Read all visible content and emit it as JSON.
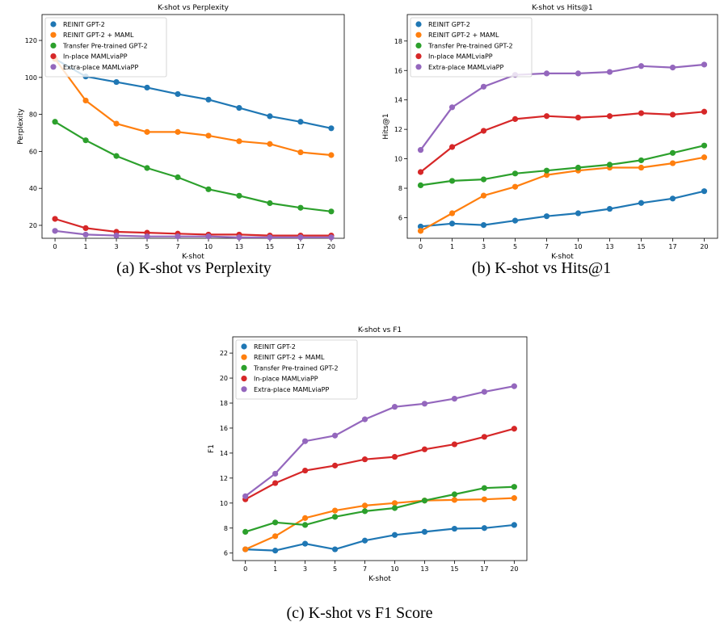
{
  "colors": {
    "series": [
      "#1f77b4",
      "#ff7f0e",
      "#2ca02c",
      "#d62728",
      "#9467bd"
    ]
  },
  "captions": [
    "(a) K-shot vs Perplexity",
    "(b) K-shot vs Hits@1",
    "(c) K-shot vs F1 Score"
  ],
  "chart_data": [
    {
      "type": "line",
      "title": "K-shot vs Perplexity",
      "xlabel": "K-shot",
      "ylabel": "Perplexity",
      "categories": [
        "0",
        "1",
        "3",
        "5",
        "7",
        "10",
        "13",
        "15",
        "17",
        "20"
      ],
      "ylim": [
        13,
        134
      ],
      "yticks": [
        20,
        40,
        60,
        80,
        100,
        120
      ],
      "legend_position": "top-left",
      "grid": false,
      "series": [
        {
          "name": "REINIT GPT-2",
          "values": [
            110,
            100.5,
            97.5,
            94.5,
            91,
            88,
            83.5,
            79,
            76,
            72.5
          ]
        },
        {
          "name": "REINIT GPT-2 + MAML",
          "values": [
            110,
            87.5,
            75,
            70.5,
            70.5,
            68.5,
            65.5,
            64,
            59.5,
            58
          ]
        },
        {
          "name": "Transfer Pre-trained GPT-2",
          "values": [
            76,
            66,
            57.5,
            51,
            46,
            39.5,
            36,
            32,
            29.5,
            27.5
          ]
        },
        {
          "name": "In-place MAMLviaPP",
          "values": [
            23.5,
            18.5,
            16.5,
            16,
            15.5,
            15,
            15,
            14.5,
            14.5,
            14.5
          ]
        },
        {
          "name": "Extra-place MAMLviaPP",
          "values": [
            17,
            15,
            14.5,
            14,
            14,
            14,
            13.5,
            13.5,
            13.5,
            13.5
          ]
        }
      ]
    },
    {
      "type": "line",
      "title": "K-shot vs Hits@1",
      "xlabel": "K-shot",
      "ylabel": "Hits@1",
      "categories": [
        "0",
        "1",
        "3",
        "5",
        "7",
        "10",
        "13",
        "15",
        "17",
        "20"
      ],
      "ylim": [
        4.6,
        19.8
      ],
      "yticks": [
        6,
        8,
        10,
        12,
        14,
        16,
        18
      ],
      "legend_position": "top-left",
      "grid": false,
      "series": [
        {
          "name": "REINIT GPT-2",
          "values": [
            5.4,
            5.6,
            5.5,
            5.8,
            6.1,
            6.3,
            6.6,
            7.0,
            7.3,
            7.8
          ]
        },
        {
          "name": "REINIT GPT-2 + MAML",
          "values": [
            5.1,
            6.3,
            7.5,
            8.1,
            8.9,
            9.2,
            9.4,
            9.4,
            9.7,
            10.1
          ]
        },
        {
          "name": "Transfer Pre-trained GPT-2",
          "values": [
            8.2,
            8.5,
            8.6,
            9.0,
            9.2,
            9.4,
            9.6,
            9.9,
            10.4,
            10.9
          ]
        },
        {
          "name": "In-place MAMLviaPP",
          "values": [
            9.1,
            10.8,
            11.9,
            12.7,
            12.9,
            12.8,
            12.9,
            13.1,
            13.0,
            13.2
          ]
        },
        {
          "name": "Extra-place MAMLviaPP",
          "values": [
            10.6,
            13.5,
            14.9,
            15.7,
            15.8,
            15.8,
            15.9,
            16.3,
            16.2,
            16.4
          ]
        }
      ]
    },
    {
      "type": "line",
      "title": "K-shot vs F1",
      "xlabel": "K-shot",
      "ylabel": "F1",
      "categories": [
        "0",
        "1",
        "3",
        "5",
        "7",
        "10",
        "13",
        "15",
        "17",
        "20"
      ],
      "ylim": [
        5.4,
        23.3
      ],
      "yticks": [
        6,
        8,
        10,
        12,
        14,
        16,
        18,
        20,
        22
      ],
      "legend_position": "top-left",
      "grid": false,
      "series": [
        {
          "name": "REINIT GPT-2",
          "values": [
            6.3,
            6.2,
            6.75,
            6.3,
            7.0,
            7.45,
            7.7,
            7.95,
            8.0,
            8.25
          ]
        },
        {
          "name": "REINIT GPT-2 + MAML",
          "values": [
            6.3,
            7.35,
            8.8,
            9.4,
            9.8,
            10.0,
            10.2,
            10.25,
            10.3,
            10.4
          ]
        },
        {
          "name": "Transfer Pre-trained GPT-2",
          "values": [
            7.7,
            8.45,
            8.25,
            8.9,
            9.35,
            9.6,
            10.2,
            10.7,
            11.2,
            11.3
          ]
        },
        {
          "name": "In-place MAMLviaPP",
          "values": [
            10.3,
            11.6,
            12.6,
            13.0,
            13.5,
            13.7,
            14.3,
            14.7,
            15.3,
            15.95
          ]
        },
        {
          "name": "Extra-place MAMLviaPP",
          "values": [
            10.55,
            12.35,
            14.95,
            15.4,
            16.7,
            17.7,
            17.95,
            18.35,
            18.9,
            19.35
          ]
        }
      ]
    }
  ]
}
